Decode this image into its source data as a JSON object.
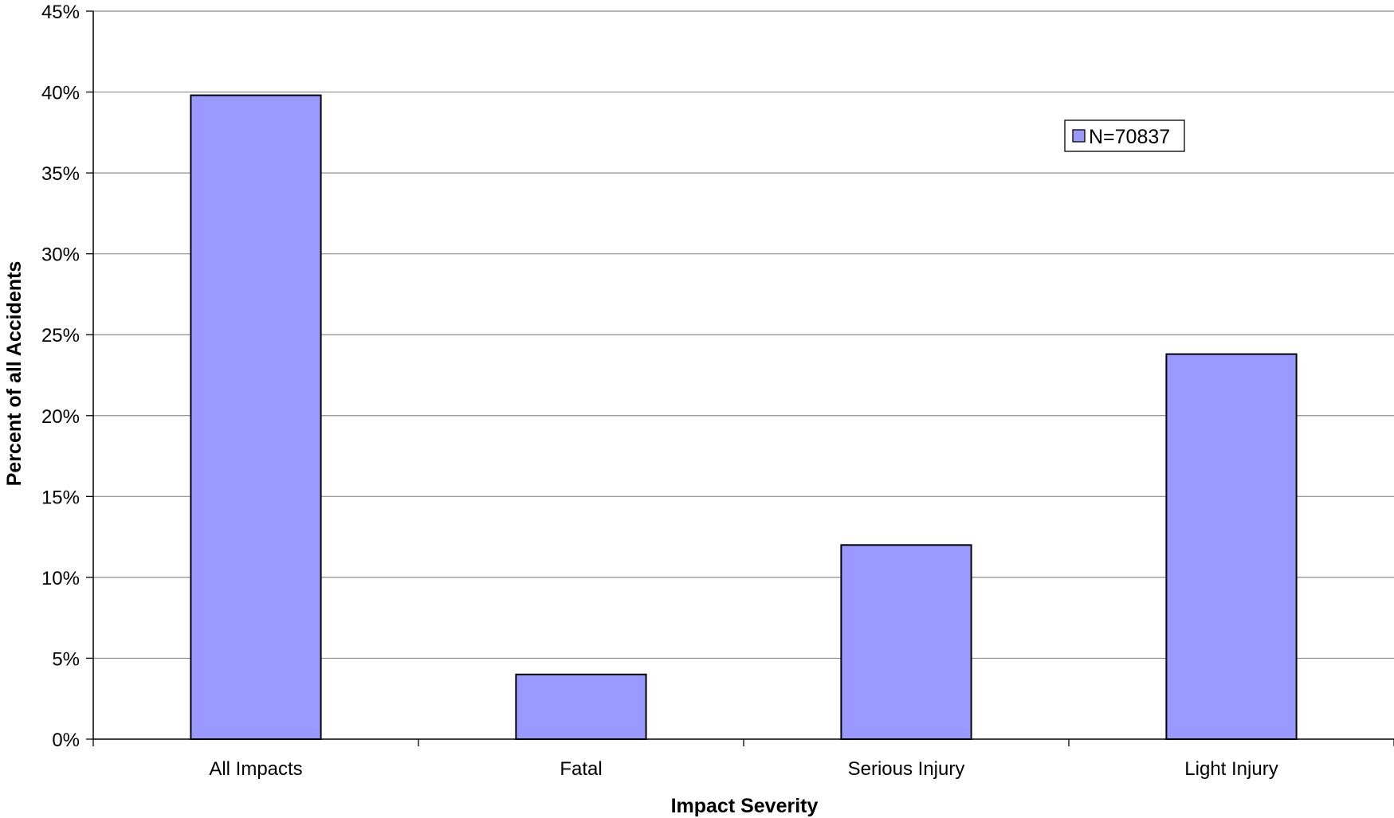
{
  "chart_data": {
    "type": "bar",
    "categories": [
      "All Impacts",
      "Fatal",
      "Serious Injury",
      "Light Injury"
    ],
    "series": [
      {
        "name": "N=70837",
        "values": [
          39.8,
          4.0,
          12.0,
          23.8
        ],
        "color": "#9999ff"
      }
    ],
    "xlabel": "Impact Severity",
    "ylabel": "Percent of all Accidents",
    "ylim": [
      0,
      45
    ],
    "yticks": [
      0,
      5,
      10,
      15,
      20,
      25,
      30,
      35,
      40,
      45
    ],
    "ytick_labels": [
      "0%",
      "5%",
      "10%",
      "15%",
      "20%",
      "25%",
      "30%",
      "35%",
      "40%",
      "45%"
    ],
    "grid": true,
    "legend_position": "top-right"
  }
}
